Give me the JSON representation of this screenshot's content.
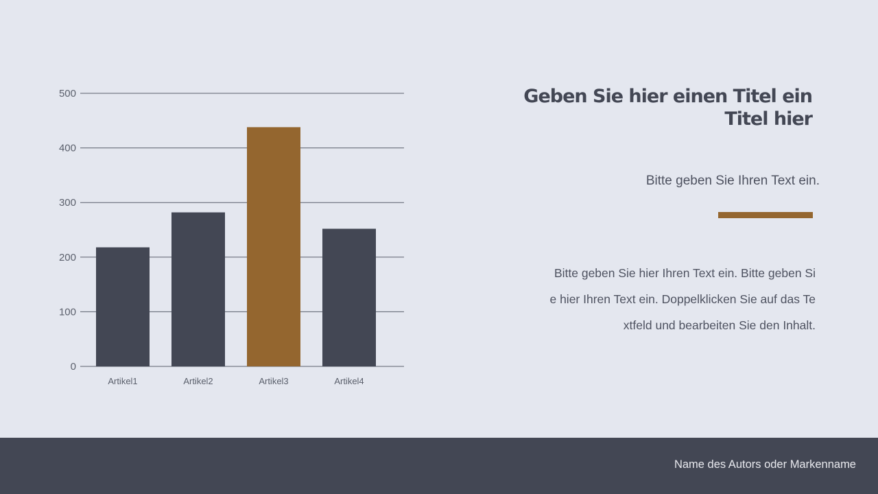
{
  "colors": {
    "background": "#e4e7ef",
    "dark": "#434754",
    "accent": "#94662f",
    "grid": "#5a5f6b"
  },
  "chart_data": {
    "type": "bar",
    "categories": [
      "Artikel1",
      "Artikel2",
      "Artikel3",
      "Artikel4"
    ],
    "values": [
      218,
      282,
      438,
      252
    ],
    "highlight_index": 2,
    "yticks": [
      0,
      100,
      200,
      300,
      400,
      500
    ],
    "ylim": [
      0,
      500
    ],
    "grid": true,
    "title": "",
    "xlabel": "",
    "ylabel": ""
  },
  "text": {
    "title_lines": [
      "Geben Sie hier einen Titel ein",
      "Titel hier"
    ],
    "subtitle": "Bitte geben Sie Ihren Text ein.",
    "body_lines": [
      "Bitte geben Sie hier Ihren Text ein. Bitte geben Si",
      "e hier Ihren Text ein. Doppelklicken Sie auf das Te",
      "xtfeld und bearbeiten Sie den Inhalt."
    ]
  },
  "footer": {
    "author": "Name des Autors oder Markenname"
  }
}
